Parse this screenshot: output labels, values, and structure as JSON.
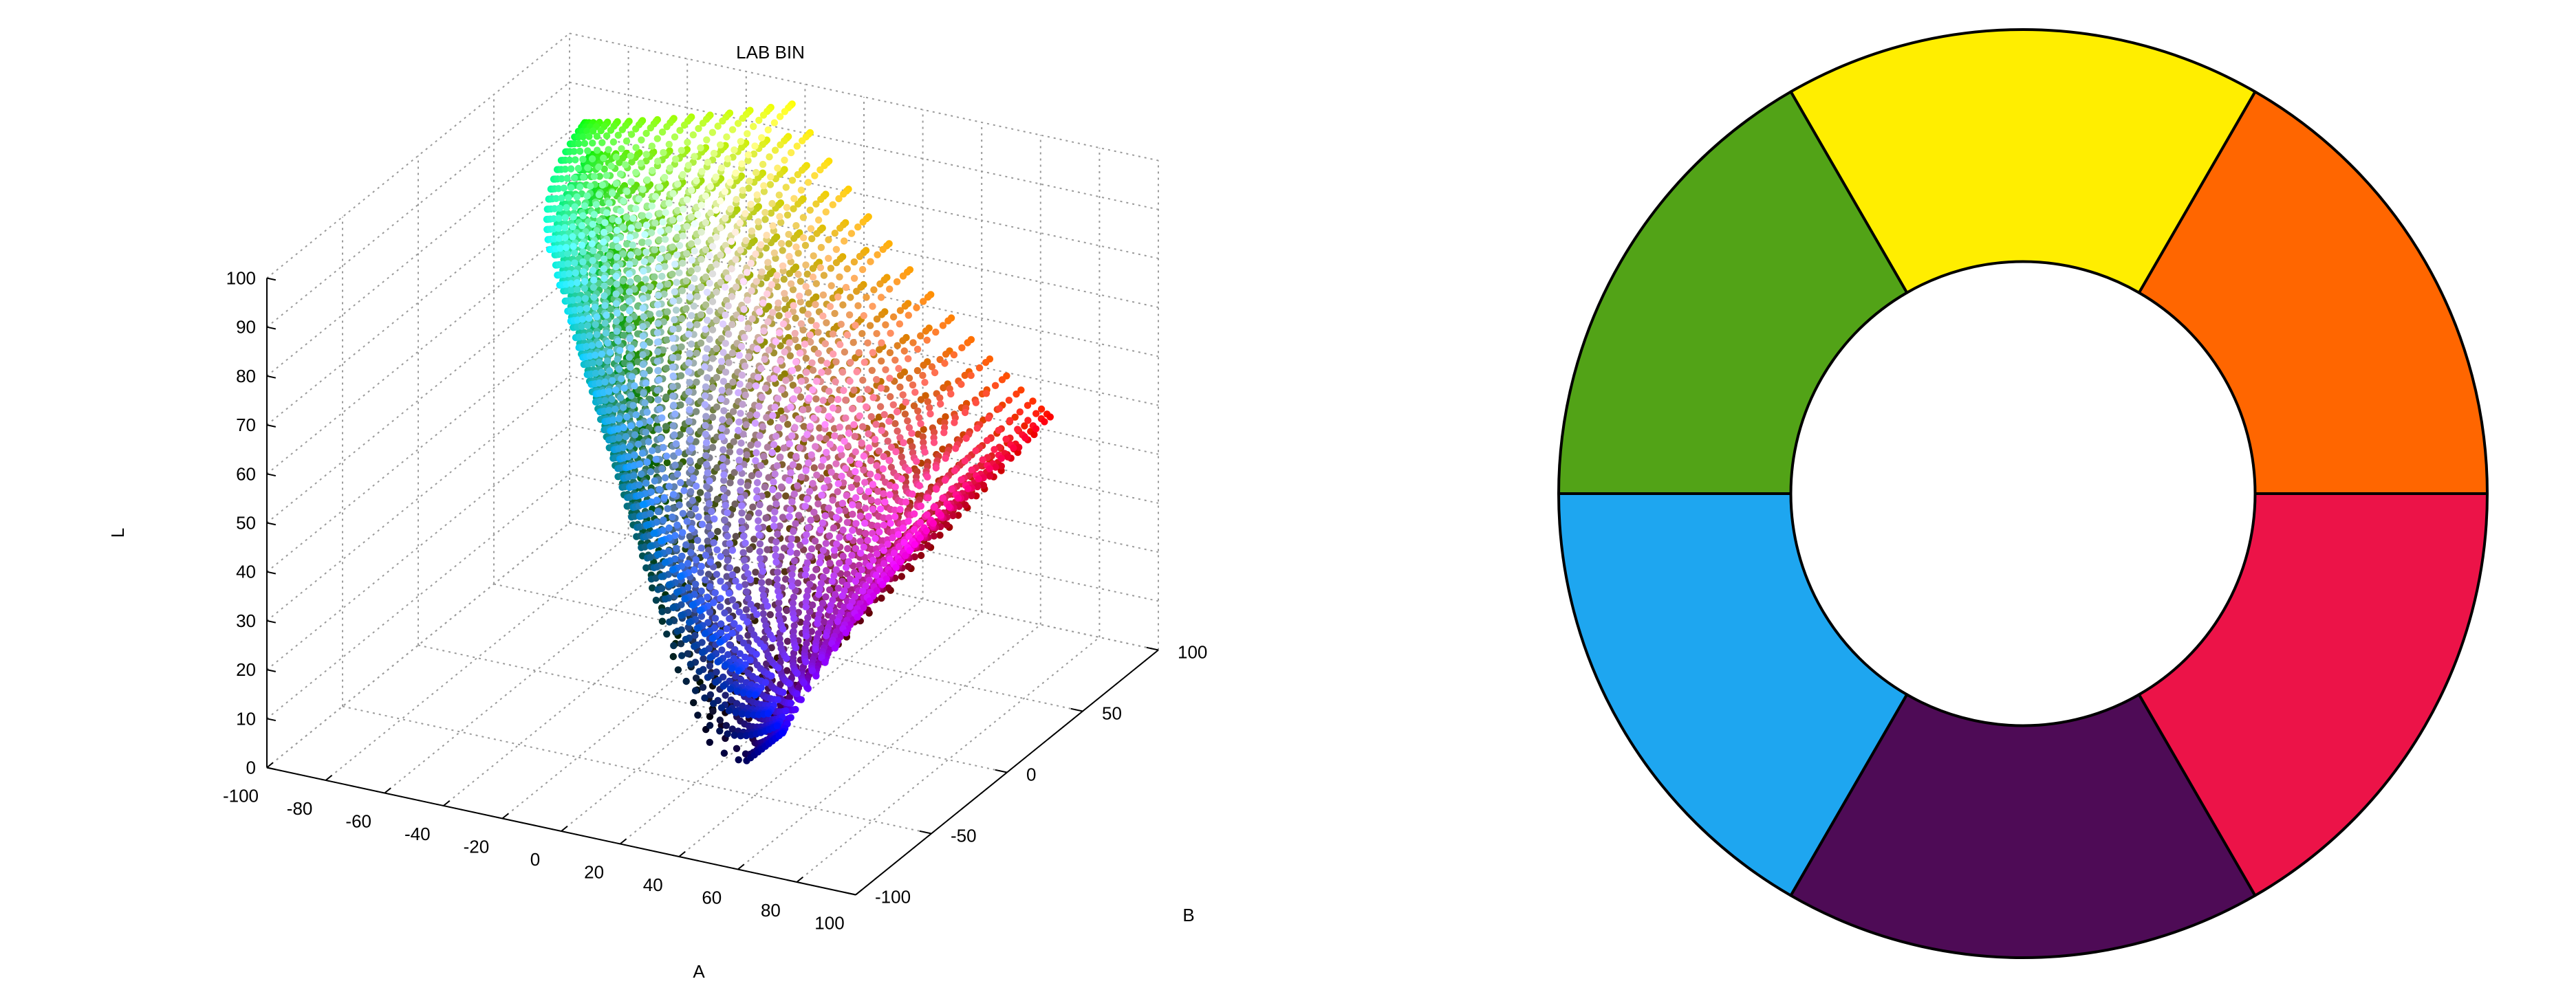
{
  "chart_data": [
    {
      "type": "scatter",
      "title": "LAB BIN",
      "xlabel": "A",
      "ylabel": "B",
      "zlabel": "L",
      "projection": "3d",
      "xlim": [
        -100,
        100
      ],
      "ylim": [
        -100,
        100
      ],
      "zlim": [
        0,
        100
      ],
      "x_ticks": [
        -100,
        -80,
        -60,
        -40,
        -20,
        0,
        20,
        40,
        60,
        80,
        100
      ],
      "y_ticks": [
        -100,
        -50,
        0,
        50,
        100
      ],
      "z_ticks": [
        0,
        10,
        20,
        30,
        40,
        50,
        60,
        70,
        80,
        90,
        100
      ],
      "grid": true,
      "description_of_points": "sRGB gamut sampled on a regular RGB grid, plotted in CIELAB, each point colored with its own RGB color",
      "rgb_sampling_steps": 17
    },
    {
      "type": "pie",
      "inner_radius_ratio": 0.5,
      "start_angle_deg": 0,
      "categories": [
        "orange",
        "yellow",
        "green",
        "blue",
        "purple",
        "red"
      ],
      "values": [
        1,
        1,
        1,
        1,
        1,
        1
      ],
      "colors": [
        "#FF6600",
        "#FFEE00",
        "#52A317",
        "#1EA6F0",
        "#4E0B56",
        "#EC1348"
      ]
    }
  ]
}
